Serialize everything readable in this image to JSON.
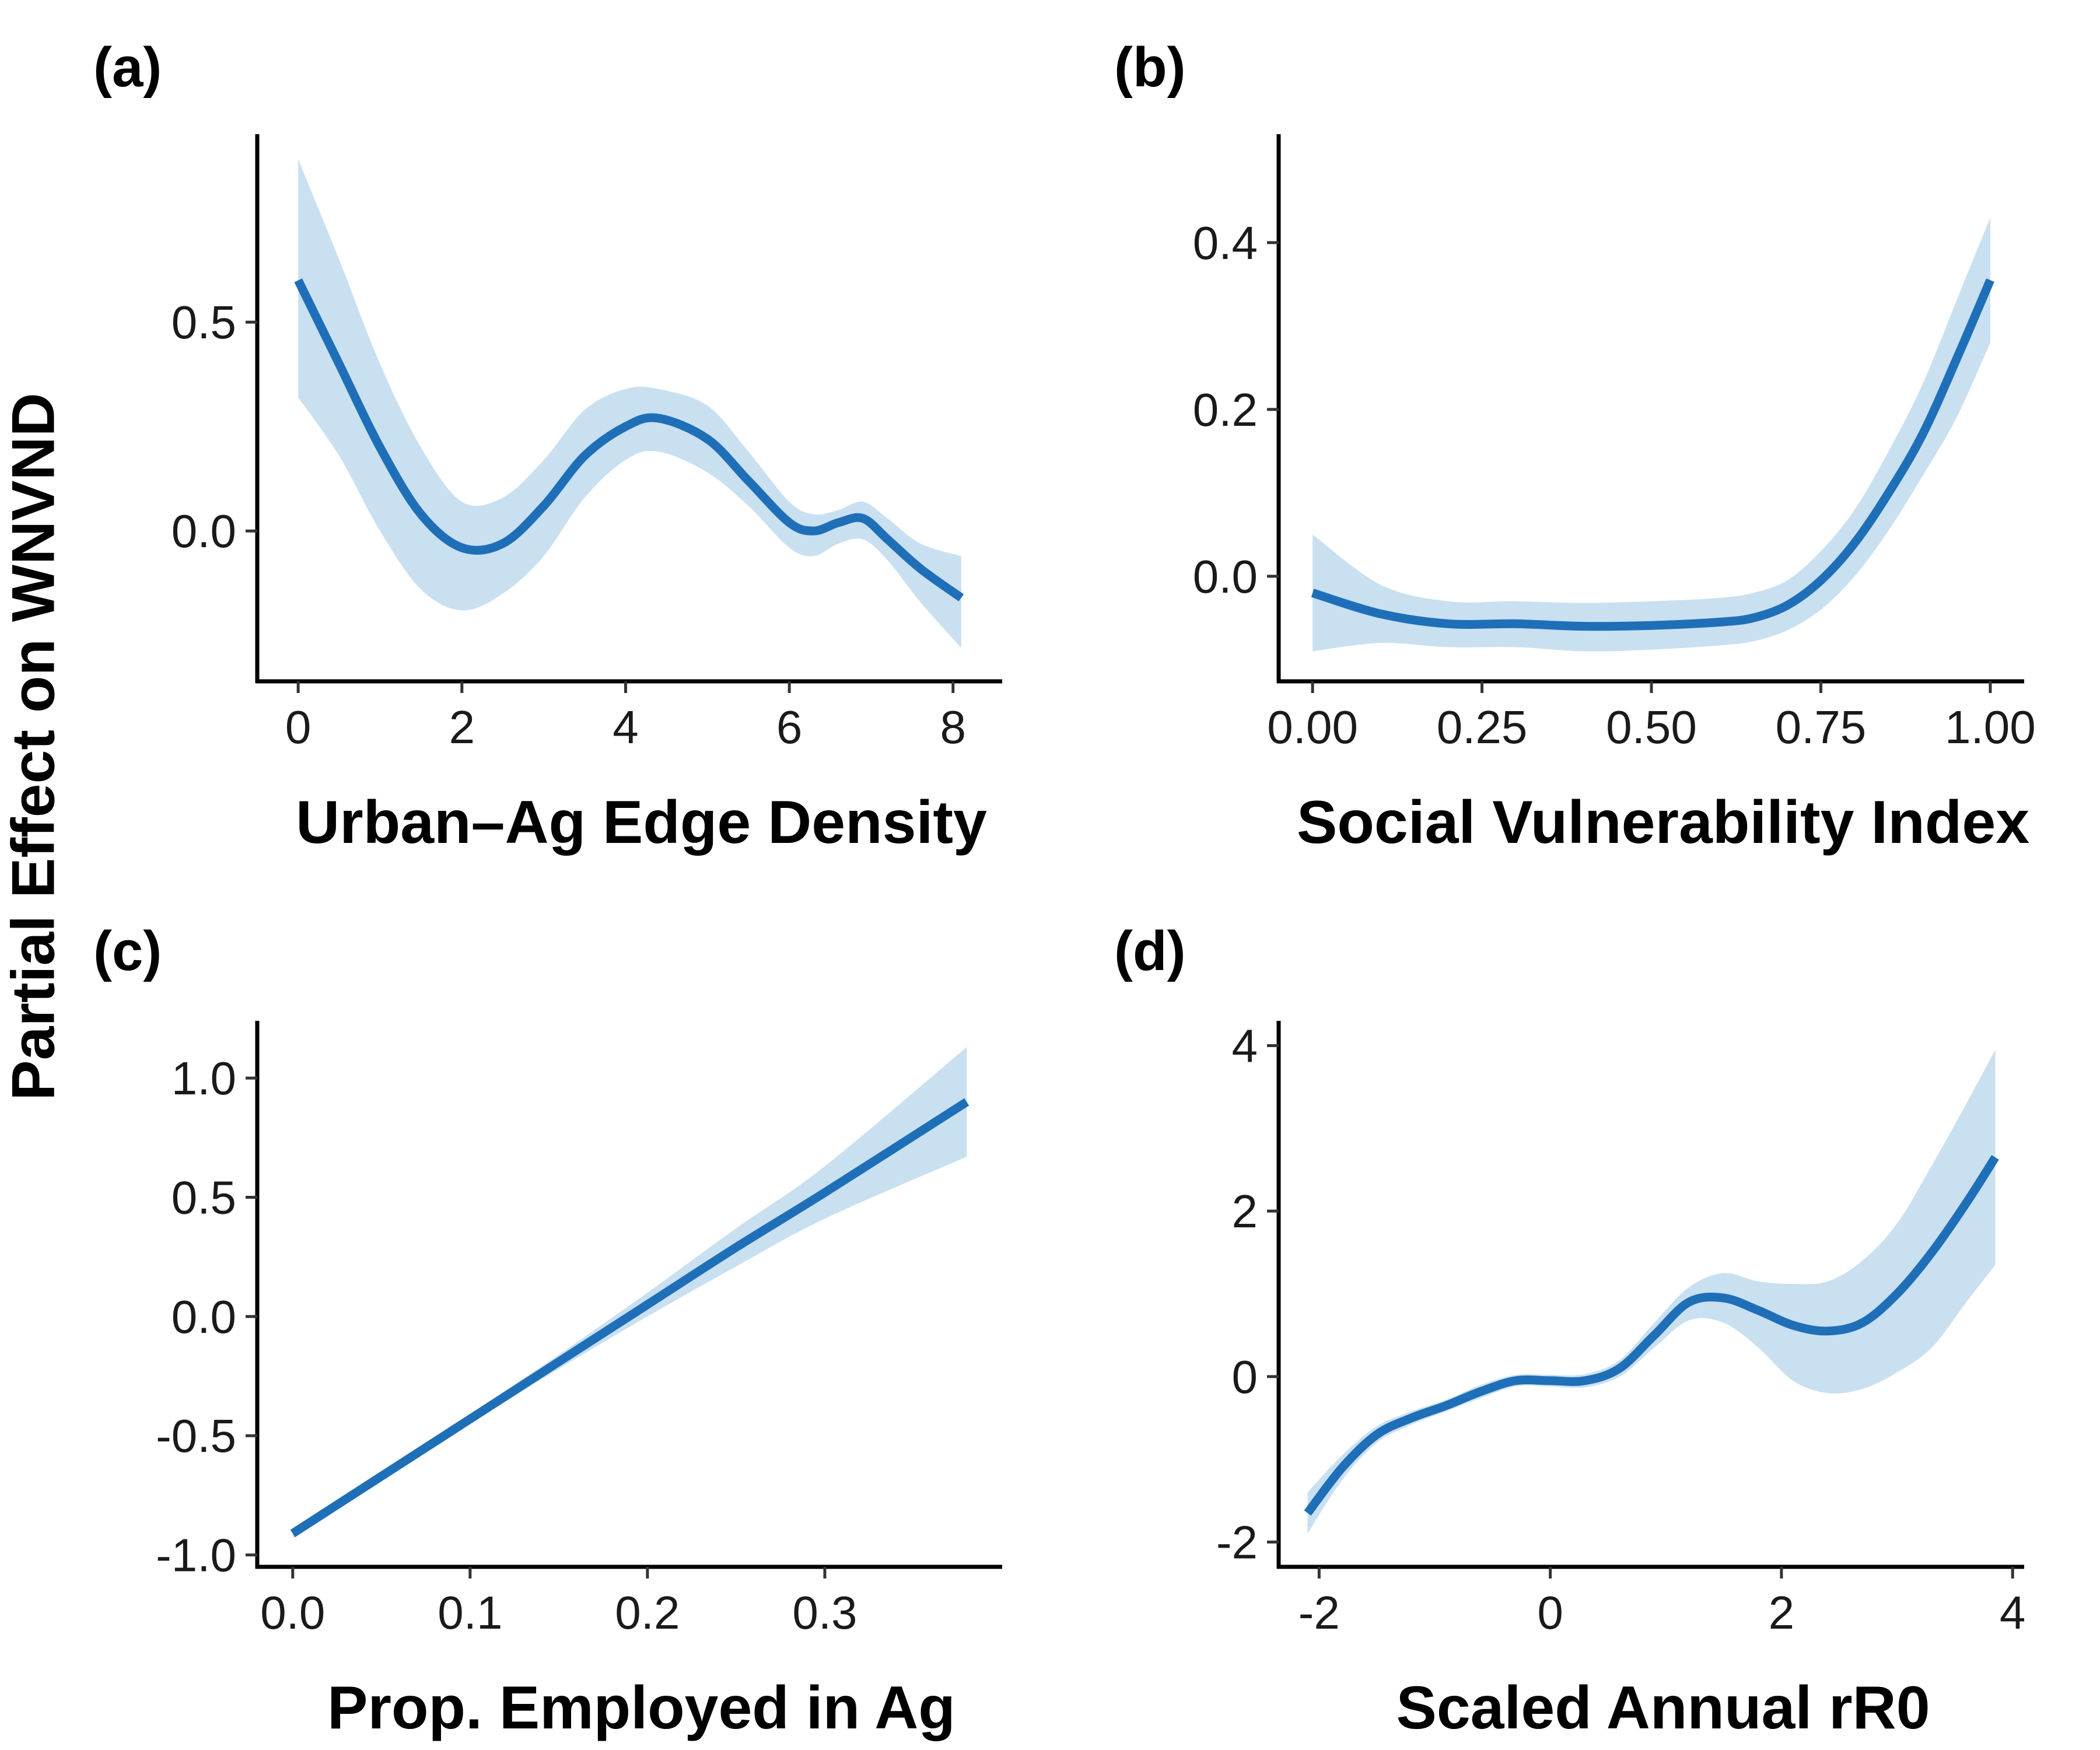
{
  "figure": {
    "ylabel": "Partial Effect on WNVND",
    "colors": {
      "line": "#1f6fb8",
      "band": "#c9e0f1",
      "axis": "#000000"
    }
  },
  "chart_data": [
    {
      "type": "line",
      "panel_label": "(a)",
      "xlabel": "Urban–Ag Edge Density",
      "xlim": [
        -0.5,
        8.6
      ],
      "ylim": [
        -0.36,
        0.95
      ],
      "xticks": [
        0,
        2,
        4,
        6,
        8
      ],
      "xtick_labels": [
        "0",
        "2",
        "4",
        "6",
        "8"
      ],
      "yticks": [
        0.0,
        0.5
      ],
      "ytick_labels": [
        "0.0",
        "0.5"
      ],
      "series": [
        {
          "x": [
            0,
            0.5,
            1.0,
            1.5,
            2.0,
            2.5,
            3.0,
            3.5,
            4.0,
            4.4,
            5.0,
            5.5,
            6.0,
            6.3,
            6.6,
            6.9,
            7.2,
            7.6,
            8.1
          ],
          "y": [
            0.6,
            0.4,
            0.2,
            0.04,
            -0.04,
            -0.03,
            0.06,
            0.18,
            0.25,
            0.27,
            0.22,
            0.12,
            0.02,
            0.0,
            0.02,
            0.03,
            -0.02,
            -0.09,
            -0.16
          ],
          "lower": [
            0.32,
            0.18,
            0.0,
            -0.14,
            -0.19,
            -0.15,
            -0.06,
            0.08,
            0.17,
            0.19,
            0.14,
            0.06,
            -0.04,
            -0.06,
            -0.03,
            -0.02,
            -0.07,
            -0.17,
            -0.28
          ],
          "upper": [
            0.89,
            0.65,
            0.4,
            0.2,
            0.07,
            0.08,
            0.17,
            0.29,
            0.34,
            0.34,
            0.3,
            0.19,
            0.07,
            0.04,
            0.05,
            0.07,
            0.03,
            -0.03,
            -0.06
          ]
        }
      ]
    },
    {
      "type": "line",
      "panel_label": "(b)",
      "xlabel": "Social Vulnerability Index",
      "xlim": [
        -0.05,
        1.05
      ],
      "ylim": [
        -0.126,
        0.53
      ],
      "xticks": [
        0.0,
        0.25,
        0.5,
        0.75,
        1.0
      ],
      "xtick_labels": [
        "0.00",
        "0.25",
        "0.50",
        "0.75",
        "1.00"
      ],
      "yticks": [
        0.0,
        0.2,
        0.4
      ],
      "ytick_labels": [
        "0.0",
        "0.2",
        "0.4"
      ],
      "series": [
        {
          "x": [
            0.0,
            0.1,
            0.2,
            0.3,
            0.4,
            0.5,
            0.6,
            0.65,
            0.7,
            0.75,
            0.8,
            0.85,
            0.9,
            0.95,
            1.0
          ],
          "y": [
            -0.02,
            -0.045,
            -0.057,
            -0.057,
            -0.06,
            -0.059,
            -0.055,
            -0.05,
            -0.035,
            -0.005,
            0.04,
            0.1,
            0.17,
            0.26,
            0.355
          ],
          "lower": [
            -0.09,
            -0.08,
            -0.085,
            -0.085,
            -0.09,
            -0.088,
            -0.083,
            -0.078,
            -0.065,
            -0.04,
            0.0,
            0.055,
            0.12,
            0.19,
            0.28
          ],
          "upper": [
            0.05,
            -0.01,
            -0.03,
            -0.03,
            -0.032,
            -0.03,
            -0.026,
            -0.02,
            -0.005,
            0.03,
            0.08,
            0.15,
            0.23,
            0.33,
            0.43
          ]
        }
      ]
    },
    {
      "type": "line",
      "panel_label": "(c)",
      "xlabel": "Prop. Employed in Ag",
      "xlim": [
        -0.02,
        0.4
      ],
      "ylim": [
        -1.05,
        1.24
      ],
      "xticks": [
        0.0,
        0.1,
        0.2,
        0.3
      ],
      "xtick_labels": [
        "0.0",
        "0.1",
        "0.2",
        "0.3"
      ],
      "yticks": [
        -1.0,
        -0.5,
        0.0,
        0.5,
        1.0
      ],
      "ytick_labels": [
        "-1.0",
        "-0.5",
        "0.0",
        "0.5",
        "1.0"
      ],
      "series": [
        {
          "x": [
            0.0,
            0.05,
            0.1,
            0.15,
            0.2,
            0.25,
            0.3,
            0.38
          ],
          "y": [
            -0.91,
            -0.67,
            -0.43,
            -0.19,
            0.05,
            0.29,
            0.52,
            0.9
          ],
          "lower": [
            -0.93,
            -0.69,
            -0.45,
            -0.22,
            0.0,
            0.21,
            0.41,
            0.67
          ],
          "upper": [
            -0.89,
            -0.65,
            -0.41,
            -0.16,
            0.1,
            0.37,
            0.63,
            1.13
          ]
        }
      ]
    },
    {
      "type": "line",
      "panel_label": "(d)",
      "xlabel": "Scaled Annual rR0",
      "xlim": [
        -2.35,
        4.1
      ],
      "ylim": [
        -2.3,
        4.3
      ],
      "xticks": [
        -2,
        0,
        2,
        4
      ],
      "xtick_labels": [
        "-2",
        "0",
        "2",
        "4"
      ],
      "yticks": [
        -2,
        0,
        2,
        4
      ],
      "ytick_labels": [
        "-2",
        "0",
        "2",
        "4"
      ],
      "series": [
        {
          "x": [
            -2.1,
            -1.8,
            -1.5,
            -1.2,
            -0.9,
            -0.6,
            -0.3,
            0.0,
            0.3,
            0.6,
            0.9,
            1.2,
            1.5,
            1.8,
            2.1,
            2.4,
            2.7,
            3.0,
            3.3,
            3.6,
            3.85
          ],
          "y": [
            -1.65,
            -1.1,
            -0.7,
            -0.5,
            -0.35,
            -0.18,
            -0.05,
            -0.05,
            -0.05,
            0.1,
            0.5,
            0.9,
            0.95,
            0.8,
            0.62,
            0.55,
            0.65,
            1.0,
            1.5,
            2.1,
            2.65
          ],
          "lower": [
            -1.9,
            -1.25,
            -0.8,
            -0.58,
            -0.42,
            -0.26,
            -0.12,
            -0.12,
            -0.13,
            0.0,
            0.35,
            0.68,
            0.65,
            0.35,
            -0.05,
            -0.2,
            -0.15,
            0.05,
            0.35,
            0.9,
            1.35
          ],
          "upper": [
            -1.4,
            -0.95,
            -0.6,
            -0.42,
            -0.28,
            -0.1,
            0.02,
            0.02,
            0.03,
            0.2,
            0.65,
            1.08,
            1.25,
            1.15,
            1.12,
            1.15,
            1.4,
            1.85,
            2.55,
            3.3,
            3.95
          ]
        }
      ]
    }
  ]
}
